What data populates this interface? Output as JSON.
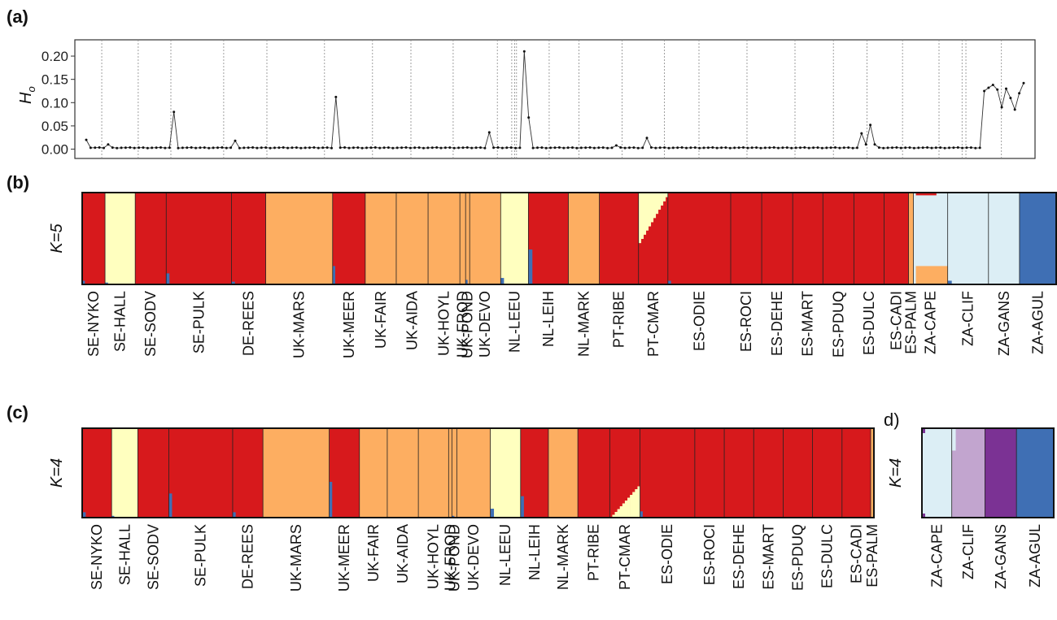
{
  "panels": {
    "a": "(a)",
    "b": "(b)",
    "c": "(c)",
    "d": "d)"
  },
  "colors": {
    "red": "#d7191c",
    "orange": "#fdae61",
    "yellow": "#ffffbf",
    "lightblue": "#dceef5",
    "blue": "#3f6fb4",
    "lilac": "#c2a5cf",
    "purple": "#7b3294"
  },
  "chart_data": [
    {
      "id": "a",
      "type": "line",
      "ylabel_main": "H",
      "ylabel_sub": "o",
      "ylim": [
        -0.02,
        0.235
      ],
      "yticks": [
        "0.00",
        "0.05",
        "0.10",
        "0.15",
        "0.20"
      ],
      "ytick_values": [
        0,
        0.05,
        0.1,
        0.15,
        0.2
      ],
      "n_individuals": 205,
      "baseline": 0.003,
      "peaks": [
        {
          "i": 0,
          "v": 0.02
        },
        {
          "i": 5,
          "v": 0.01
        },
        {
          "i": 20,
          "v": 0.08
        },
        {
          "i": 34,
          "v": 0.018
        },
        {
          "i": 57,
          "v": 0.112
        },
        {
          "i": 92,
          "v": 0.036
        },
        {
          "i": 100,
          "v": 0.21
        },
        {
          "i": 101,
          "v": 0.068
        },
        {
          "i": 121,
          "v": 0.008
        },
        {
          "i": 128,
          "v": 0.024
        },
        {
          "i": 177,
          "v": 0.034
        },
        {
          "i": 178,
          "v": 0.01
        },
        {
          "i": 179,
          "v": 0.052
        },
        {
          "i": 180,
          "v": 0.01
        }
      ],
      "tail_values": [
        0.125,
        0.132,
        0.138,
        0.128,
        0.09,
        0.13,
        0.11,
        0.085,
        0.12,
        0.142
      ],
      "separators": [
        0.028,
        0.066,
        0.1,
        0.155,
        0.2,
        0.26,
        0.31,
        0.35,
        0.394,
        0.44,
        0.455,
        0.458,
        0.46,
        0.494,
        0.525,
        0.57,
        0.614,
        0.65,
        0.7,
        0.75,
        0.79,
        0.825,
        0.862,
        0.9,
        0.924,
        0.928,
        0.965
      ]
    },
    {
      "id": "b",
      "type": "bar",
      "ylabel": "K=5",
      "populations": [
        {
          "label": "SE-NYKO",
          "w": 28,
          "comp": {
            "red": 1
          },
          "notes": [
            {
              "c": "blue",
              "h": 0.04,
              "w": 0.12
            }
          ]
        },
        {
          "label": "SE-HALL",
          "w": 37,
          "comp": {
            "yellow": 1
          },
          "notes": [
            {
              "c": "blue",
              "h": 0.02,
              "w": 0.1
            }
          ]
        },
        {
          "label": "SE-SODV",
          "w": 38,
          "comp": {
            "red": 1
          }
        },
        {
          "label": "SE-PULK",
          "w": 80,
          "comp": {
            "red": 1
          },
          "notes": [
            {
              "c": "blue",
              "h": 0.12,
              "w": 0.05
            }
          ]
        },
        {
          "label": "DE-REES",
          "w": 42,
          "comp": {
            "red": 1
          },
          "notes": [
            {
              "c": "blue",
              "h": 0.03,
              "w": 0.1
            }
          ]
        },
        {
          "label": "UK-MARS",
          "w": 82,
          "comp": {
            "orange": 1
          }
        },
        {
          "label": "UK-MEER",
          "w": 40,
          "comp": {
            "red": 1
          },
          "notes": [
            {
              "c": "blue",
              "h": 0.2,
              "w": 0.08
            }
          ]
        },
        {
          "label": "UK-FAIR",
          "w": 38,
          "comp": {
            "orange": 1
          }
        },
        {
          "label": "UK-AIDA",
          "w": 39,
          "comp": {
            "orange": 1
          }
        },
        {
          "label": "UK-HOYL",
          "w": 39,
          "comp": {
            "orange": 1
          }
        },
        {
          "label": "UK-FROD",
          "w": 7,
          "comp": {
            "orange": 1
          }
        },
        {
          "label": "UK-POND",
          "w": 5,
          "comp": {
            "orange": 1
          },
          "notes": [
            {
              "c": "blue",
              "h": 0.05,
              "w": 0.5
            }
          ]
        },
        {
          "label": "UK-DEVO",
          "w": 38,
          "comp": {
            "orange": 1
          }
        },
        {
          "label": "NL-LEEU",
          "w": 34,
          "comp": {
            "yellow": 1
          },
          "notes": [
            {
              "c": "blue",
              "h": 0.07,
              "w": 0.12
            }
          ]
        },
        {
          "label": "NL-LEIH",
          "w": 49,
          "comp": {
            "red": 1
          },
          "notes": [
            {
              "c": "blue",
              "h": 0.38,
              "w": 0.1
            }
          ]
        },
        {
          "label": "NL-MARK",
          "w": 38,
          "comp": {
            "orange": 1
          }
        },
        {
          "label": "PT-RIBE",
          "w": 48,
          "comp": {
            "red": 1
          }
        },
        {
          "label": "PT-CMAR",
          "w": 36,
          "comp": {
            "red": 1
          },
          "gradient": {
            "c": "yellow",
            "from": 0.55,
            "to": 0.05
          }
        },
        {
          "label": "ES-ODIE",
          "w": 77,
          "comp": {
            "red": 1
          },
          "notes": [
            {
              "c": "blue",
              "h": 0.04,
              "w": 0.05
            }
          ]
        },
        {
          "label": "ES-ROCI",
          "w": 38,
          "comp": {
            "red": 1
          }
        },
        {
          "label": "ES-DEHE",
          "w": 38,
          "comp": {
            "red": 1
          }
        },
        {
          "label": "ES-MART",
          "w": 37,
          "comp": {
            "red": 1
          }
        },
        {
          "label": "ES-PDUQ",
          "w": 38,
          "comp": {
            "red": 1
          }
        },
        {
          "label": "ES-DULC",
          "w": 37,
          "comp": {
            "red": 1
          }
        },
        {
          "label": "ES-CADI",
          "w": 30,
          "comp": {
            "red": 1
          }
        },
        {
          "label": "ES-PALM",
          "w": 6,
          "comp": {
            "orange": 1
          }
        },
        {
          "label": "ZA-CAPE",
          "w": 42,
          "comp": {
            "lightblue": 1
          },
          "bottom": {
            "c": "orange",
            "h": 0.2
          },
          "top": {
            "c": "red",
            "h": 0.03
          }
        },
        {
          "label": "ZA-CLIF",
          "w": 50,
          "comp": {
            "lightblue": 1
          },
          "notes": [
            {
              "c": "blue",
              "h": 0.04,
              "w": 0.1
            }
          ]
        },
        {
          "label": "ZA-GANS",
          "w": 38,
          "comp": {
            "lightblue": 1
          }
        },
        {
          "label": "ZA-AGUL",
          "w": 45,
          "comp": {
            "blue": 1
          }
        }
      ]
    },
    {
      "id": "c",
      "type": "bar",
      "ylabel": "K=4",
      "populations": [
        {
          "label": "SE-NYKO",
          "w": 36,
          "comp": {
            "red": 1
          },
          "notes": [
            {
              "c": "blue",
              "h": 0.06,
              "w": 0.12
            }
          ]
        },
        {
          "label": "SE-HALL",
          "w": 32,
          "comp": {
            "yellow": 1
          },
          "notes": [
            {
              "c": "blue",
              "h": 0.02,
              "w": 0.1
            }
          ]
        },
        {
          "label": "SE-SODV",
          "w": 38,
          "comp": {
            "red": 1
          }
        },
        {
          "label": "SE-PULK",
          "w": 78,
          "comp": {
            "red": 1
          },
          "notes": [
            {
              "c": "blue",
              "h": 0.27,
              "w": 0.05
            }
          ]
        },
        {
          "label": "DE-REES",
          "w": 37,
          "comp": {
            "red": 1
          },
          "notes": [
            {
              "c": "blue",
              "h": 0.06,
              "w": 0.1
            }
          ]
        },
        {
          "label": "UK-MARS",
          "w": 81,
          "comp": {
            "orange": 1
          }
        },
        {
          "label": "UK-MEER",
          "w": 37,
          "comp": {
            "red": 1
          },
          "notes": [
            {
              "c": "blue",
              "h": 0.4,
              "w": 0.1
            }
          ]
        },
        {
          "label": "UK-FAIR",
          "w": 34,
          "comp": {
            "orange": 1
          }
        },
        {
          "label": "UK-AIDA",
          "w": 38,
          "comp": {
            "orange": 1
          }
        },
        {
          "label": "UK-HOYL",
          "w": 37,
          "comp": {
            "orange": 1
          }
        },
        {
          "label": "UK-FROD",
          "w": 4,
          "comp": {
            "orange": 1
          }
        },
        {
          "label": "UK-POND",
          "w": 6,
          "comp": {
            "orange": 1
          },
          "notes": [
            {
              "c": "blue",
              "h": 0.02,
              "w": 0.5
            }
          ]
        },
        {
          "label": "UK-DEVO",
          "w": 41,
          "comp": {
            "orange": 1
          }
        },
        {
          "label": "NL-LEEU",
          "w": 37,
          "comp": {
            "yellow": 1
          },
          "notes": [
            {
              "c": "blue",
              "h": 0.1,
              "w": 0.12
            }
          ]
        },
        {
          "label": "NL-LEIH",
          "w": 34,
          "comp": {
            "red": 1
          },
          "notes": [
            {
              "c": "blue",
              "h": 0.24,
              "w": 0.12
            }
          ]
        },
        {
          "label": "NL-MARK",
          "w": 36,
          "comp": {
            "orange": 1
          }
        },
        {
          "label": "PT-RIBE",
          "w": 39,
          "comp": {
            "red": 1
          }
        },
        {
          "label": "PT-CMAR",
          "w": 37,
          "comp": {
            "red": 1
          },
          "gradient": {
            "c": "yellow",
            "from": 0.0,
            "to": 0.35,
            "invert": true
          }
        },
        {
          "label": "ES-ODIE",
          "w": 67,
          "comp": {
            "red": 1
          },
          "notes": [
            {
              "c": "blue",
              "h": 0.07,
              "w": 0.05
            }
          ]
        },
        {
          "label": "ES-ROCI",
          "w": 36,
          "comp": {
            "red": 1
          }
        },
        {
          "label": "ES-DEHE",
          "w": 36,
          "comp": {
            "red": 1
          }
        },
        {
          "label": "ES-MART",
          "w": 36,
          "comp": {
            "red": 1
          }
        },
        {
          "label": "ES-PDUQ",
          "w": 36,
          "comp": {
            "red": 1
          }
        },
        {
          "label": "ES-DULC",
          "w": 36,
          "comp": {
            "red": 1
          }
        },
        {
          "label": "ES-CADI",
          "w": 35,
          "comp": {
            "red": 1
          }
        },
        {
          "label": "ES-PALM",
          "w": 4,
          "comp": {
            "orange": 1
          }
        }
      ]
    },
    {
      "id": "d",
      "type": "bar",
      "ylabel": "K=4",
      "populations": [
        {
          "label": "ZA-CAPE",
          "w": 36,
          "comp": {
            "lightblue": 1
          },
          "topcorner": "purple"
        },
        {
          "label": "ZA-CLIF",
          "w": 40,
          "comp": {
            "lilac": 1
          },
          "notes": [
            {
              "c": "lightblue",
              "h": 0.25,
              "w": 0.12,
              "top": true
            }
          ]
        },
        {
          "label": "ZA-GANS",
          "w": 38,
          "comp": {
            "purple": 1
          }
        },
        {
          "label": "ZA-AGUL",
          "w": 45,
          "comp": {
            "blue": 1
          }
        }
      ]
    }
  ]
}
